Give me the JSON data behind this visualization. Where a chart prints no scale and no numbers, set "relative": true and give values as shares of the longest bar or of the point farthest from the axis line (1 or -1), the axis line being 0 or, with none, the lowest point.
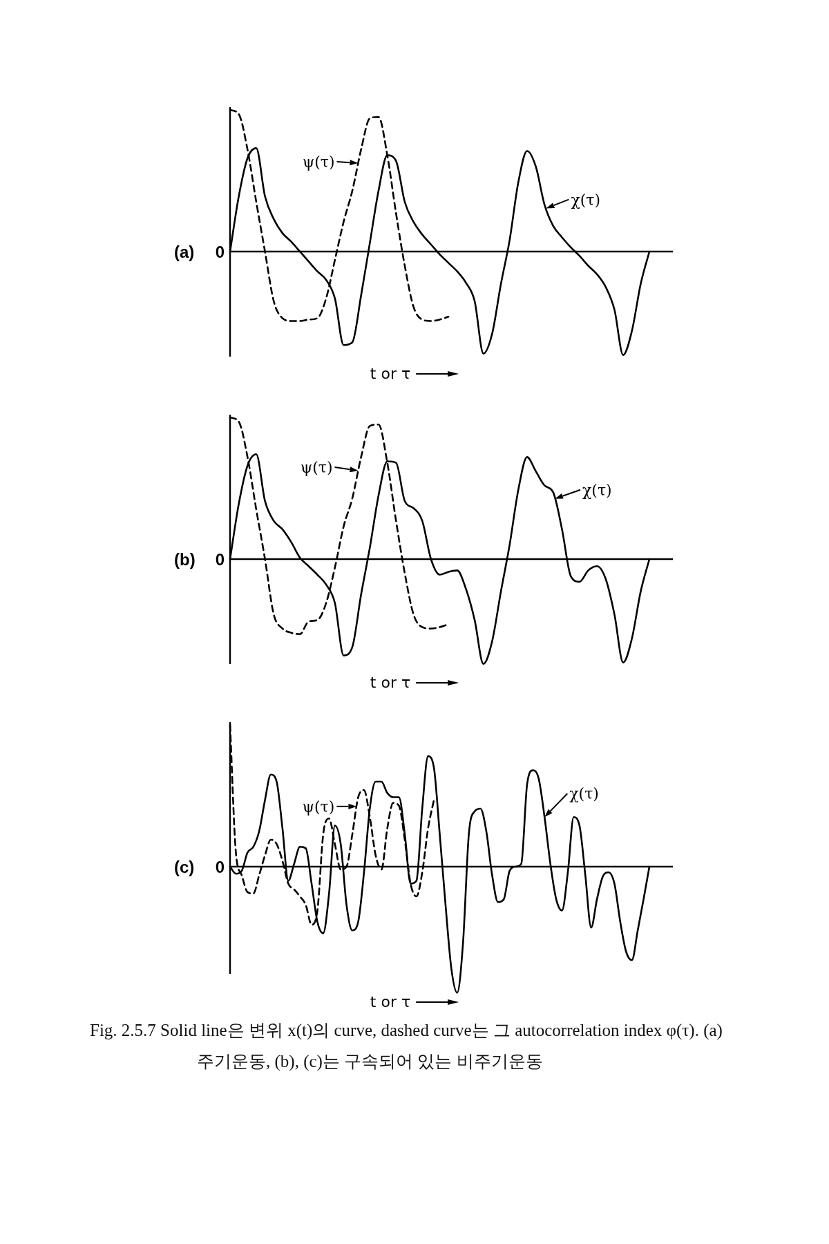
{
  "chart_data": [
    {
      "type": "line",
      "title": "(a)",
      "xlabel": "t or τ",
      "relative": true,
      "annotations": [
        "0"
      ],
      "categories": [
        null,
        null,
        null,
        null,
        null,
        null,
        null,
        null,
        null,
        null,
        null,
        null,
        null,
        null,
        null,
        null,
        null,
        null,
        null,
        null,
        null,
        null,
        null,
        null,
        null,
        null,
        null,
        null,
        null,
        null,
        null,
        null,
        null,
        null,
        null,
        null,
        null,
        null,
        null,
        null,
        null,
        null,
        null,
        null,
        null,
        null,
        null,
        null,
        null
      ],
      "series": [
        {
          "name": "χ(τ)",
          "color": "#000000",
          "line_style": "solid",
          "values": [
            0,
            0.39,
            0.66,
            0.73,
            0.39,
            0.23,
            0.13,
            0.07,
            0,
            -0.07,
            -0.14,
            -0.2,
            -0.33,
            -0.66,
            -0.64,
            -0.31,
            0.06,
            0.43,
            0.68,
            0.64,
            0.35,
            0.21,
            0.12,
            0.05,
            -0.02,
            -0.08,
            -0.14,
            -0.22,
            -0.35,
            -0.72,
            -0.58,
            -0.23,
            0.08,
            0.49,
            0.71,
            0.6,
            0.33,
            0.18,
            0.1,
            0.03,
            -0.03,
            -0.1,
            -0.16,
            -0.25,
            -0.41,
            -0.73,
            -0.56,
            -0.23,
            0
          ]
        },
        {
          "name": "ψ(τ)",
          "color": "#000000",
          "line_style": "dashed",
          "values": [
            1,
            0.97,
            0.72,
            0.35,
            0,
            -0.35,
            -0.47,
            -0.49,
            -0.49,
            -0.48,
            -0.47,
            -0.33,
            -0.06,
            0.21,
            0.43,
            0.72,
            0.94,
            0.95,
            0.68,
            0.27,
            -0.1,
            -0.39,
            -0.48,
            -0.49,
            -0.48,
            -0.46,
            null,
            null,
            null,
            null,
            null,
            null,
            null,
            null,
            null,
            null,
            null,
            null,
            null,
            null,
            null,
            null,
            null,
            null,
            null,
            null,
            null,
            null,
            null
          ]
        }
      ]
    },
    {
      "type": "line",
      "title": "(b)",
      "xlabel": "t or τ",
      "relative": true,
      "annotations": [
        "0"
      ],
      "categories": [
        null,
        null,
        null,
        null,
        null,
        null,
        null,
        null,
        null,
        null,
        null,
        null,
        null,
        null,
        null,
        null,
        null,
        null,
        null,
        null,
        null,
        null,
        null,
        null,
        null,
        null,
        null,
        null,
        null,
        null,
        null,
        null,
        null,
        null,
        null,
        null,
        null,
        null,
        null,
        null,
        null,
        null,
        null,
        null,
        null,
        null,
        null,
        null,
        null
      ],
      "series": [
        {
          "name": "χ(τ)",
          "color": "#000000",
          "line_style": "solid",
          "values": [
            0,
            0.39,
            0.66,
            0.74,
            0.41,
            0.27,
            0.21,
            0.12,
            0.01,
            -0.05,
            -0.11,
            -0.18,
            -0.31,
            -0.68,
            -0.62,
            -0.25,
            0.08,
            0.45,
            0.69,
            0.68,
            0.41,
            0.36,
            0.27,
            0,
            -0.11,
            -0.09,
            -0.08,
            -0.21,
            -0.43,
            -0.74,
            -0.58,
            -0.23,
            0.1,
            0.49,
            0.72,
            0.62,
            0.52,
            0.47,
            0.21,
            -0.12,
            -0.16,
            -0.08,
            -0.05,
            -0.14,
            -0.39,
            -0.73,
            -0.56,
            -0.23,
            0
          ]
        },
        {
          "name": "ψ(τ)",
          "color": "#000000",
          "line_style": "dashed",
          "values": [
            1,
            0.97,
            0.72,
            0.35,
            0,
            -0.39,
            -0.49,
            -0.52,
            -0.53,
            -0.44,
            -0.43,
            -0.31,
            -0.06,
            0.23,
            0.43,
            0.72,
            0.94,
            0.95,
            0.68,
            0.27,
            -0.1,
            -0.39,
            -0.48,
            -0.49,
            -0.48,
            -0.46,
            null,
            null,
            null,
            null,
            null,
            null,
            null,
            null,
            null,
            null,
            null,
            null,
            null,
            null,
            null,
            null,
            null,
            null,
            null,
            null,
            null,
            null,
            null
          ]
        }
      ]
    },
    {
      "type": "line",
      "title": "(c)",
      "xlabel": "t or τ",
      "relative": true,
      "annotations": [
        "0",
        "Fig. 2.5.7 Solid line은 변위 x(t)의 curve, dashed curve는 그 autocorrelation index φ(τ). (a) 주기운동, (b), (c)는 구속되어 있는 비주기운동"
      ],
      "categories": [
        null,
        null,
        null,
        null,
        null,
        null,
        null,
        null,
        null,
        null,
        null,
        null,
        null,
        null,
        null,
        null,
        null,
        null,
        null,
        null,
        null,
        null,
        null,
        null,
        null,
        null,
        null,
        null,
        null,
        null,
        null,
        null,
        null,
        null,
        null,
        null,
        null,
        null,
        null,
        null,
        null,
        null,
        null,
        null,
        null,
        null,
        null,
        null,
        null,
        null,
        null,
        null,
        null,
        null,
        null,
        null,
        null,
        null,
        null,
        null,
        null,
        null,
        null,
        null,
        null,
        null,
        null,
        null,
        null,
        null,
        null,
        null,
        null
      ],
      "series": [
        {
          "name": "χ(τ)",
          "color": "#000000",
          "line_style": "solid",
          "values": [
            0,
            -0.05,
            -0.03,
            0.1,
            0.14,
            0.25,
            0.47,
            0.65,
            0.6,
            0.27,
            -0.1,
            0.02,
            0.14,
            0.13,
            -0.12,
            -0.39,
            -0.47,
            -0.19,
            0.29,
            0.16,
            -0.27,
            -0.45,
            -0.39,
            -0.04,
            0.41,
            0.6,
            0.6,
            0.52,
            0.49,
            0.49,
            0.23,
            -0.12,
            -0.1,
            0.41,
            0.78,
            0.7,
            0.23,
            -0.27,
            -0.72,
            -0.89,
            -0.54,
            0.23,
            0.39,
            0.41,
            0.25,
            -0.06,
            -0.25,
            -0.23,
            -0.03,
            0,
            0.02,
            0.58,
            0.68,
            0.62,
            0.35,
            0.02,
            -0.23,
            -0.31,
            -0.04,
            0.35,
            0.29,
            -0.06,
            -0.43,
            -0.23,
            -0.07,
            -0.04,
            -0.12,
            -0.39,
            -0.6,
            -0.66,
            -0.45,
            -0.23,
            0
          ]
        },
        {
          "name": "ψ(τ)",
          "color": "#000000",
          "line_style": "dashed",
          "values": [
            1,
            0.1,
            -0.06,
            -0.18,
            -0.19,
            -0.06,
            0.08,
            0.19,
            0.16,
            0.04,
            -0.12,
            -0.16,
            -0.21,
            -0.27,
            -0.41,
            -0.31,
            0.23,
            0.34,
            0.16,
            -0.02,
            0,
            0.23,
            0.49,
            0.54,
            0.35,
            0.08,
            -0.02,
            0.27,
            0.45,
            0.43,
            0.19,
            -0.12,
            -0.21,
            -0.04,
            0.27,
            0.47,
            null,
            null,
            null,
            null,
            null,
            null,
            null,
            null,
            null,
            null,
            null,
            null,
            null,
            null,
            null,
            null,
            null,
            null,
            null,
            null,
            null,
            null,
            null,
            null,
            null,
            null,
            null,
            null,
            null,
            null,
            null,
            null,
            null,
            null,
            null,
            null,
            null
          ]
        }
      ]
    }
  ]
}
